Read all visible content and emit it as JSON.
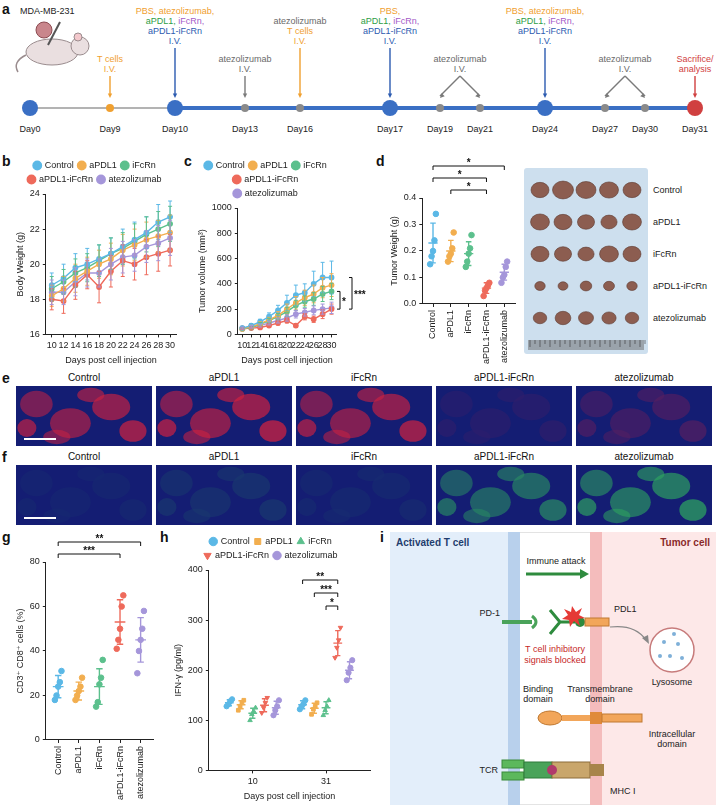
{
  "timeline": {
    "label": "a",
    "model": "MDA-MB-231",
    "days": [
      {
        "text": "Day0",
        "marker": "large",
        "color": "#3A6FC4"
      },
      {
        "text": "Day9",
        "marker": "small",
        "color": "#F0A030"
      },
      {
        "text": "Day10",
        "marker": "large",
        "color": "#3A6FC4"
      },
      {
        "text": "Day13",
        "marker": "small",
        "color": "#8A8A8A"
      },
      {
        "text": "Day16",
        "marker": "small",
        "color": "#8A8A8A"
      },
      {
        "text": "Day17",
        "marker": "large",
        "color": "#3A6FC4"
      },
      {
        "text": "Day19",
        "marker": "small",
        "color": "#8A8A8A"
      },
      {
        "text": "Day21",
        "marker": "small",
        "color": "#8A8A8A"
      },
      {
        "text": "Day24",
        "marker": "large",
        "color": "#3A6FC4"
      },
      {
        "text": "Day27",
        "marker": "small",
        "color": "#8A8A8A"
      },
      {
        "text": "Day30",
        "marker": "small",
        "color": "#8A8A8A"
      },
      {
        "text": "Day31",
        "marker": "large",
        "color": "#D04040"
      }
    ],
    "events": [
      {
        "days": [
          "Day9"
        ],
        "color": "#F0A030",
        "lines": [
          [
            {
              "text": "T cells",
              "color": "#F0A030"
            }
          ],
          [
            {
              "text": "I.V.",
              "color": "#F0A030"
            }
          ]
        ]
      },
      {
        "days": [
          "Day10"
        ],
        "color": "#2C5BB0",
        "lines": [
          [
            {
              "text": "PBS, atezolizumab,",
              "color": "#F0A030"
            }
          ],
          [
            {
              "text": "aPDL1,",
              "color": "#2E9E46"
            },
            {
              "text": "iFcRn,",
              "color": "#A55BC8"
            }
          ],
          [
            {
              "text": "aPDL1-iFcRn",
              "color": "#2C5BB0"
            }
          ],
          [
            {
              "text": "I.V.",
              "color": "#2C5BB0"
            }
          ]
        ]
      },
      {
        "days": [
          "Day13"
        ],
        "color": "#7A7A7A",
        "lines": [
          [
            {
              "text": "atezolizumab",
              "color": "#6A6A6A"
            }
          ],
          [
            {
              "text": "I.V.",
              "color": "#6A6A6A"
            }
          ]
        ]
      },
      {
        "days": [
          "Day16"
        ],
        "color": "#F0A030",
        "lines": [
          [
            {
              "text": "atezolizumab",
              "color": "#6A6A6A"
            }
          ],
          [
            {
              "text": "T cells",
              "color": "#F0A030"
            }
          ],
          [
            {
              "text": "I.V.",
              "color": "#F0A030"
            }
          ]
        ]
      },
      {
        "days": [
          "Day17"
        ],
        "color": "#2C5BB0",
        "lines": [
          [
            {
              "text": "PBS,",
              "color": "#F0A030"
            }
          ],
          [
            {
              "text": "aPDL1,",
              "color": "#2E9E46"
            },
            {
              "text": "iFcRn,",
              "color": "#A55BC8"
            }
          ],
          [
            {
              "text": "aPDL1-iFcRn",
              "color": "#2C5BB0"
            }
          ],
          [
            {
              "text": "I.V.",
              "color": "#2C5BB0"
            }
          ]
        ]
      },
      {
        "days": [
          "Day19",
          "Day21"
        ],
        "color": "#7A7A7A",
        "lines": [
          [
            {
              "text": "atezolizumab",
              "color": "#6A6A6A"
            }
          ],
          [
            {
              "text": "I.V.",
              "color": "#6A6A6A"
            }
          ]
        ]
      },
      {
        "days": [
          "Day24"
        ],
        "color": "#2C5BB0",
        "lines": [
          [
            {
              "text": "PBS, atezolizumab,",
              "color": "#F0A030"
            }
          ],
          [
            {
              "text": "aPDL1,",
              "color": "#2E9E46"
            },
            {
              "text": "iFcRn,",
              "color": "#A55BC8"
            }
          ],
          [
            {
              "text": "aPDL1-iFcRn",
              "color": "#2C5BB0"
            }
          ],
          [
            {
              "text": "I.V.",
              "color": "#2C5BB0"
            }
          ]
        ]
      },
      {
        "days": [
          "Day27",
          "Day30"
        ],
        "color": "#7A7A7A",
        "lines": [
          [
            {
              "text": "atezolizumab",
              "color": "#6A6A6A"
            }
          ],
          [
            {
              "text": "I.V.",
              "color": "#6A6A6A"
            }
          ]
        ]
      },
      {
        "days": [
          "Day31"
        ],
        "color": "#D04040",
        "lines": [
          [
            {
              "text": "Sacrifice/",
              "color": "#D04040"
            }
          ],
          [
            {
              "text": "analysis",
              "color": "#D04040"
            }
          ]
        ]
      }
    ]
  },
  "chart_data": [
    {
      "type": "line",
      "label": "b",
      "ylabel": "Body Weight (g)",
      "xlabel": "Days post cell injection",
      "x": [
        10,
        12,
        14,
        16,
        18,
        20,
        22,
        24,
        26,
        28,
        30
      ],
      "xlim": [
        9,
        31
      ],
      "xticks": [
        10,
        12,
        14,
        16,
        18,
        20,
        22,
        24,
        26,
        28,
        30
      ],
      "ylim": [
        16,
        24
      ],
      "yticks": [
        16,
        18,
        20,
        22,
        24
      ],
      "grid": false,
      "legend": "top",
      "marker": "circle",
      "series": [
        {
          "name": "Control",
          "color": "#5BB8E6",
          "values": [
            18.8,
            19.2,
            19.8,
            20.0,
            20.3,
            20.6,
            21.0,
            21.4,
            21.8,
            22.4,
            22.7
          ],
          "errors": [
            0.7,
            0.8,
            0.8,
            0.9,
            0.8,
            0.9,
            1.0,
            1.0,
            0.9,
            1.0,
            0.9
          ]
        },
        {
          "name": "aPDL1",
          "color": "#F2AE4F",
          "values": [
            18.2,
            18.6,
            19.2,
            19.6,
            20.0,
            20.3,
            20.8,
            21.1,
            21.4,
            21.6,
            21.8
          ],
          "errors": [
            0.6,
            0.7,
            0.8,
            0.8,
            0.8,
            0.9,
            0.9,
            0.9,
            1.0,
            0.9,
            1.0
          ]
        },
        {
          "name": "iFcRn",
          "color": "#5CC08D",
          "values": [
            18.6,
            19.0,
            19.5,
            19.8,
            20.2,
            20.6,
            20.9,
            21.3,
            21.7,
            22.0,
            22.3
          ],
          "errors": [
            0.7,
            0.7,
            0.8,
            0.8,
            0.9,
            0.9,
            0.9,
            1.0,
            1.0,
            1.0,
            1.0
          ]
        },
        {
          "name": "aPDL1-iFcRn",
          "color": "#EE6A5B",
          "values": [
            18.0,
            17.9,
            18.8,
            19.4,
            18.7,
            19.6,
            20.2,
            20.0,
            20.4,
            20.6,
            20.8
          ],
          "errors": [
            0.6,
            0.7,
            0.8,
            0.8,
            0.9,
            0.9,
            0.9,
            0.9,
            1.0,
            1.0,
            0.9
          ]
        },
        {
          "name": "atezolizumab",
          "color": "#A596DA",
          "values": [
            18.4,
            18.4,
            19.0,
            19.5,
            19.5,
            20.0,
            20.4,
            20.5,
            21.0,
            21.2,
            21.5
          ],
          "errors": [
            0.7,
            0.7,
            0.8,
            0.8,
            0.8,
            0.9,
            0.9,
            0.9,
            0.9,
            1.0,
            1.0
          ]
        }
      ]
    },
    {
      "type": "line",
      "label": "c",
      "ylabel": "Tumor volume (mm³)",
      "xlabel": "Days post cell injection",
      "x": [
        10,
        12,
        14,
        16,
        18,
        20,
        22,
        24,
        26,
        28,
        30
      ],
      "xlim": [
        9,
        31
      ],
      "xticks": [
        10,
        12,
        14,
        16,
        18,
        20,
        22,
        24,
        26,
        28,
        30
      ],
      "ylim": [
        0,
        1000
      ],
      "yticks": [
        0,
        200,
        400,
        600,
        800,
        1000
      ],
      "grid": false,
      "legend": "top",
      "marker": "circle",
      "series": [
        {
          "name": "Control",
          "color": "#5BB8E6",
          "values": [
            50,
            70,
            100,
            140,
            190,
            250,
            310,
            330,
            400,
            450,
            450
          ],
          "errors": [
            10,
            15,
            20,
            30,
            40,
            60,
            80,
            70,
            100,
            120,
            130
          ]
        },
        {
          "name": "aPDL1",
          "color": "#F2AE4F",
          "values": [
            45,
            60,
            85,
            115,
            150,
            200,
            250,
            290,
            320,
            370,
            390
          ],
          "errors": [
            8,
            12,
            15,
            20,
            30,
            40,
            50,
            60,
            70,
            80,
            90
          ]
        },
        {
          "name": "iFcRn",
          "color": "#5CC08D",
          "values": [
            45,
            55,
            80,
            110,
            140,
            180,
            230,
            260,
            280,
            320,
            340
          ],
          "errors": [
            8,
            10,
            14,
            18,
            25,
            35,
            40,
            45,
            50,
            60,
            65
          ]
        },
        {
          "name": "aPDL1-iFcRn",
          "color": "#EE6A5B",
          "values": [
            45,
            50,
            55,
            70,
            90,
            110,
            70,
            140,
            120,
            160,
            200
          ],
          "errors": [
            6,
            8,
            8,
            12,
            15,
            20,
            15,
            25,
            25,
            35,
            40
          ]
        },
        {
          "name": "atezolizumab",
          "color": "#A596DA",
          "values": [
            50,
            60,
            70,
            90,
            110,
            130,
            160,
            175,
            190,
            200,
            210
          ],
          "errors": [
            8,
            10,
            12,
            15,
            20,
            25,
            30,
            30,
            35,
            40,
            45
          ]
        }
      ],
      "annotations": [
        {
          "text": "*",
          "from": "iFcRn",
          "to": "aPDL1-iFcRn"
        },
        {
          "text": "***",
          "from": "Control",
          "to": "aPDL1-iFcRn"
        }
      ]
    },
    {
      "type": "scatter",
      "label": "d",
      "ylabel": "Tumor Weight (g)",
      "categories": [
        "Control",
        "aPDL1",
        "iFcRn",
        "aPDL1-iFcRn",
        "atezolizumab"
      ],
      "colors": [
        "#5BB8E6",
        "#F2AE4F",
        "#5CC08D",
        "#EE6A5B",
        "#A596DA"
      ],
      "ylim": [
        0,
        0.4
      ],
      "yticks": [
        {
          "value": 0,
          "label": "0.0"
        },
        0.1,
        0.2,
        0.3,
        0.4
      ],
      "grid": false,
      "marker": "circle",
      "points": [
        [
          0.15,
          0.18,
          0.2,
          0.24,
          0.34
        ],
        [
          0.16,
          0.18,
          0.19,
          0.21,
          0.27
        ],
        [
          0.14,
          0.16,
          0.19,
          0.21,
          0.26
        ],
        [
          0.03,
          0.05,
          0.06,
          0.07,
          0.08
        ],
        [
          0.08,
          0.1,
          0.11,
          0.14,
          0.16
        ]
      ],
      "means": [
        0.23,
        0.2,
        0.19,
        0.06,
        0.12
      ],
      "errors": [
        0.075,
        0.04,
        0.045,
        0.02,
        0.03
      ],
      "annotations": [
        {
          "text": "*",
          "from": "aPDL1",
          "to": "aPDL1-iFcRn"
        },
        {
          "text": "*",
          "from": "Control",
          "to": "aPDL1-iFcRn"
        },
        {
          "text": "*",
          "from": "Control",
          "to": "atezolizumab"
        }
      ]
    },
    {
      "type": "scatter",
      "label": "g",
      "ylabel": "CD3⁺ CD8⁺ cells (%)",
      "categories": [
        "Control",
        "aPDL1",
        "iFcRn",
        "aPDL1-iFcRn",
        "atezolizumab"
      ],
      "colors": [
        "#5BB8E6",
        "#F2AE4F",
        "#5CC08D",
        "#EE6A5B",
        "#A596DA"
      ],
      "ylim": [
        0,
        80
      ],
      "yticks": [
        0,
        20,
        40,
        60,
        80
      ],
      "grid": false,
      "marker": "circle",
      "points": [
        [
          18,
          20,
          24,
          26,
          31
        ],
        [
          18,
          20,
          22,
          24,
          28
        ],
        [
          15,
          17,
          25,
          28,
          36
        ],
        [
          41,
          45,
          50,
          60,
          65
        ],
        [
          30,
          40,
          45,
          50,
          58
        ]
      ],
      "means": [
        24,
        22,
        24,
        53,
        45
      ],
      "errors": [
        5,
        4,
        8,
        10,
        10
      ],
      "annotations": [
        {
          "text": "***",
          "from": "Control",
          "to": "aPDL1-iFcRn"
        },
        {
          "text": "**",
          "from": "Control",
          "to": "atezolizumab"
        }
      ]
    },
    {
      "type": "scatter",
      "label": "h",
      "ylabel": "IFN-γ (pg/ml)",
      "xlabel": "Days post cell injection",
      "categories": [
        "10",
        "31"
      ],
      "ylim": [
        0,
        400
      ],
      "yticks": [
        0,
        100,
        200,
        300,
        400
      ],
      "grid": false,
      "legend": "top",
      "series": [
        {
          "name": "Control",
          "color": "#5BB8E6",
          "marker": "circle",
          "values": [
            135,
            131
          ],
          "errors": [
            6,
            8
          ],
          "points": [
            [
              128,
              132,
              138,
              142
            ],
            [
              122,
              128,
              133,
              140
            ]
          ]
        },
        {
          "name": "aPDL1",
          "color": "#F2AE4F",
          "marker": "rect",
          "values": [
            131,
            124
          ],
          "errors": [
            8,
            10
          ],
          "points": [
            [
              120,
              128,
              135,
              140
            ],
            [
              112,
              122,
              128,
              135
            ]
          ]
        },
        {
          "name": "iFcRn",
          "color": "#5CC08D",
          "marker": "triangle",
          "values": [
            114,
            125
          ],
          "errors": [
            10,
            12
          ],
          "points": [
            [
              100,
              112,
              118,
              125
            ],
            [
              110,
              120,
              128,
              140
            ]
          ]
        },
        {
          "name": "aPDL1-iFcRn",
          "color": "#EE6A5B",
          "marker": "triangle-down",
          "values": [
            130,
            254
          ],
          "errors": [
            13,
            25
          ],
          "points": [
            [
              115,
              125,
              135,
              145
            ],
            [
              225,
              245,
              260,
              285
            ]
          ]
        },
        {
          "name": "atezolizumab",
          "color": "#A596DA",
          "marker": "circle",
          "values": [
            125,
            200
          ],
          "errors": [
            13,
            17
          ],
          "points": [
            [
              110,
              120,
              128,
              140
            ],
            [
              180,
              195,
              205,
              220
            ]
          ]
        }
      ],
      "annotations": [
        {
          "text": "*",
          "category": "31",
          "from": "iFcRn",
          "to": "aPDL1-iFcRn"
        },
        {
          "text": "***",
          "category": "31",
          "from": "aPDL1",
          "to": "aPDL1-iFcRn"
        },
        {
          "text": "**",
          "category": "31",
          "from": "Control",
          "to": "aPDL1-iFcRn"
        }
      ]
    }
  ],
  "tumor_photo": {
    "row_labels": [
      "Control",
      "aPDL1",
      "iFcRn",
      "aPDL1-iFcRn",
      "atezolizumab"
    ]
  },
  "micrographs": [
    {
      "label": "e",
      "titles": [
        "Control",
        "aPDL1",
        "iFcRn",
        "aPDL1-iFcRn",
        "atezolizumab"
      ]
    },
    {
      "label": "f",
      "titles": [
        "Control",
        "aPDL1",
        "iFcRn",
        "aPDL1-iFcRn",
        "atezolizumab"
      ]
    }
  ],
  "diagram": {
    "label": "i",
    "t_cell": "Activated T cell",
    "tumor_cell": "Tumor cell",
    "attack": "Immune attack",
    "pd1": "PD-1",
    "pdl1": "PDL1",
    "blocked": "T cell inhibitory signals blocked",
    "lysosome": "Lysosome",
    "transmembrane": "Transmembrane domain",
    "binding": "Binding domain",
    "intracellular": "Intracellular domain",
    "tcr": "TCR",
    "mhc": "MHC I"
  }
}
